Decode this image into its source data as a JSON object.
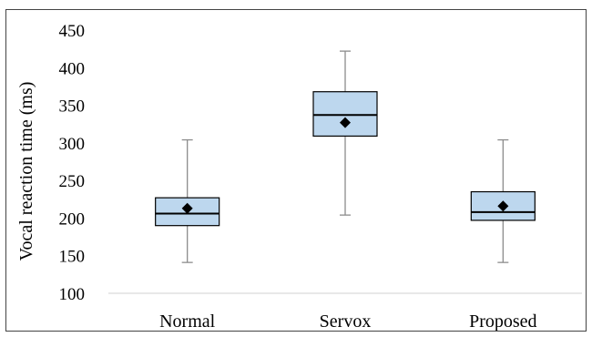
{
  "chart_data": {
    "type": "box",
    "title": "",
    "ylabel": "Vocal reaction time (ms)",
    "xlabel": "",
    "ylim": [
      100,
      450
    ],
    "yticks": [
      100,
      150,
      200,
      250,
      300,
      350,
      400,
      450
    ],
    "ytick_labels": [
      "100",
      "150",
      "200",
      "250",
      "300",
      "350",
      "400",
      "450"
    ],
    "grid": false,
    "legend": "none",
    "categories": [
      "Normal",
      "Servox",
      "Proposed"
    ],
    "boxes": [
      {
        "category": "Normal",
        "min": 141,
        "q1": 190,
        "median": 206,
        "q3": 227,
        "max": 304,
        "mean": 213
      },
      {
        "category": "Servox",
        "min": 204,
        "q1": 309,
        "median": 337,
        "q3": 368,
        "max": 422,
        "mean": 327
      },
      {
        "category": "Proposed",
        "min": 141,
        "q1": 197,
        "median": 208,
        "q3": 235,
        "max": 304,
        "mean": 216
      }
    ],
    "colors": {
      "box_fill": "#bdd7ee",
      "box_stroke": "#000000",
      "whisker": "#8c8c8c",
      "mean_marker": "#000000",
      "axis": "#d9d9d9"
    }
  }
}
